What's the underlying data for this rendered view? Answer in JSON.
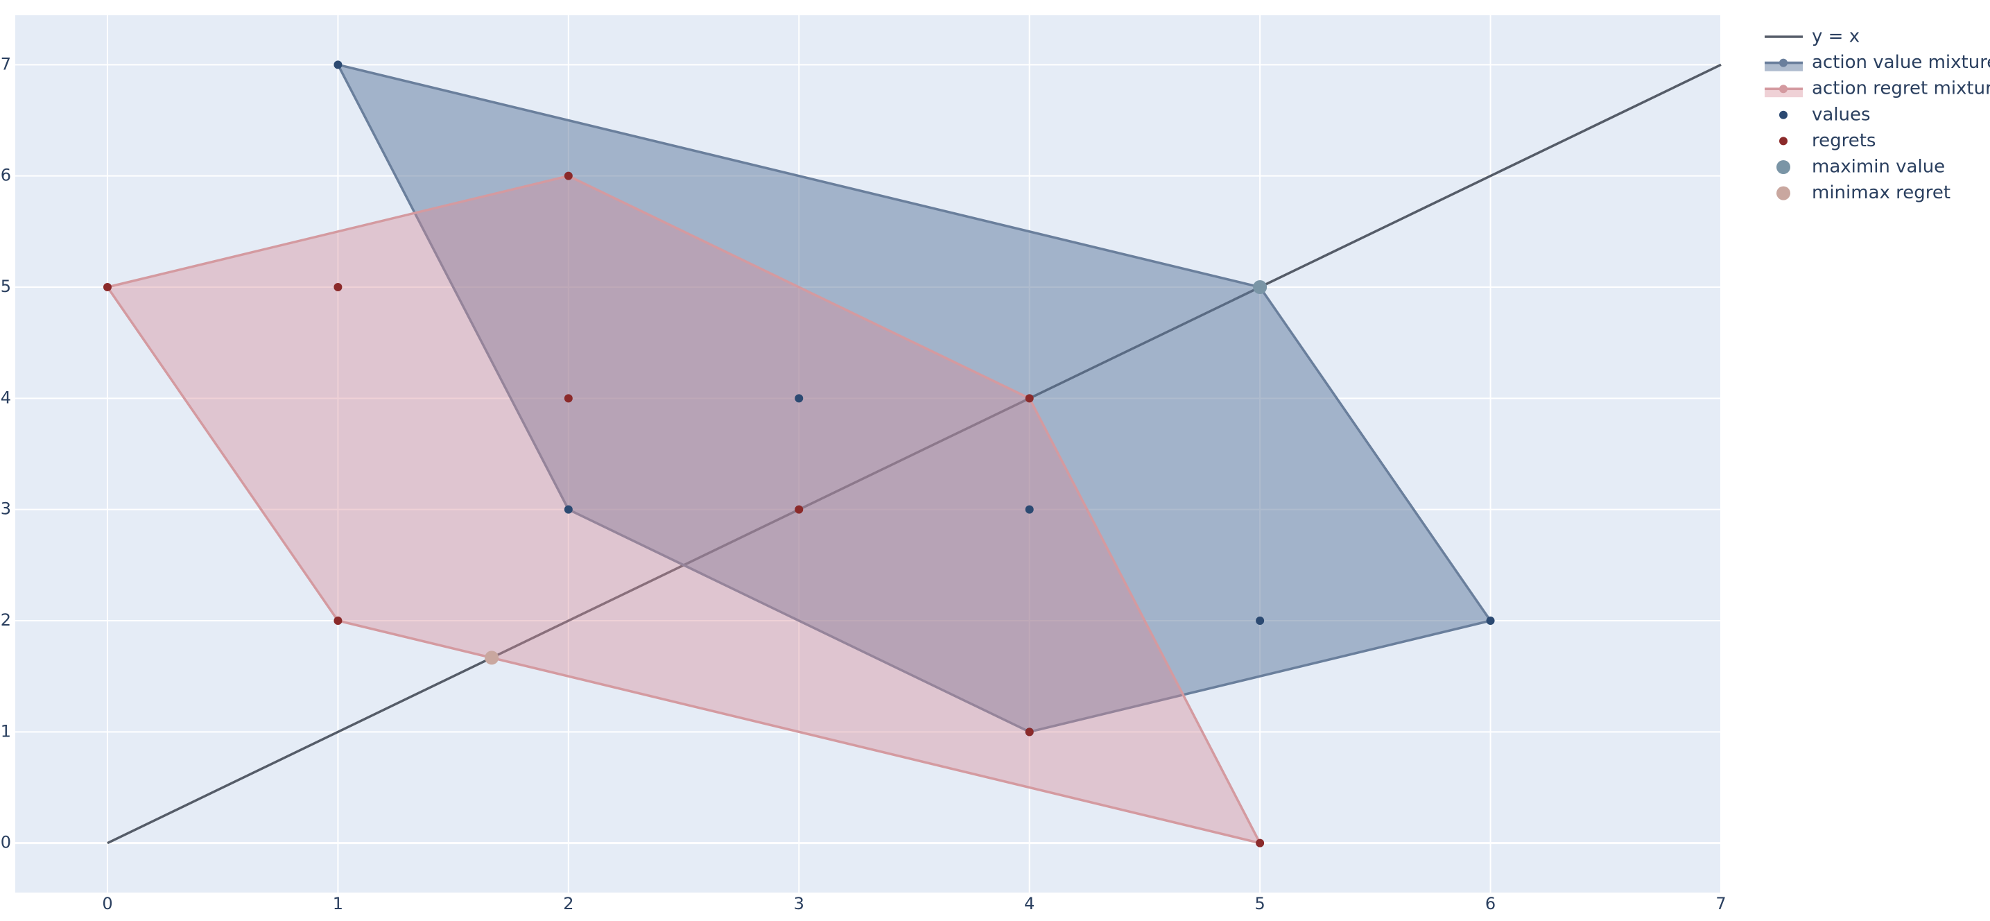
{
  "chart_data": {
    "type": "scatter",
    "xlim": [
      -0.4,
      7
    ],
    "ylim": [
      -0.445,
      7.445
    ],
    "xticks": [
      0,
      1,
      2,
      3,
      4,
      5,
      6,
      7
    ],
    "yticks": [
      0,
      1,
      2,
      3,
      4,
      5,
      6,
      7
    ],
    "grid": true,
    "legend": "right",
    "series": [
      {
        "name": "y = x",
        "mode": "lines",
        "color": "#555c68",
        "x": [
          0,
          7
        ],
        "y": [
          0,
          7
        ]
      },
      {
        "name": "action value mixture",
        "mode": "lines+markers",
        "fill": "rgba(96,122,158,0.5)",
        "color": "#6a7f9c",
        "x": [
          1,
          5,
          6,
          4,
          2
        ],
        "y": [
          7,
          5,
          2,
          1,
          3
        ]
      },
      {
        "name": "action regret mixture",
        "mode": "lines+markers",
        "fill": "rgba(214,140,152,0.4)",
        "color": "#d49aa0",
        "x": [
          0,
          2,
          4,
          5,
          1
        ],
        "y": [
          5,
          6,
          4,
          0,
          2
        ]
      },
      {
        "name": "values",
        "mode": "markers",
        "color": "#2c4a72",
        "x": [
          1,
          2,
          3,
          4,
          5,
          6,
          5,
          4
        ],
        "y": [
          7,
          3,
          4,
          3,
          2,
          2,
          5,
          1
        ]
      },
      {
        "name": "regrets",
        "mode": "markers",
        "color": "#8b2a2a",
        "x": [
          0,
          1,
          2,
          2,
          3,
          4,
          1,
          4,
          5
        ],
        "y": [
          5,
          5,
          6,
          4,
          3,
          4,
          2,
          1,
          0
        ]
      },
      {
        "name": "maximin value",
        "mode": "markers",
        "size": "large",
        "color": "#7a95a6",
        "x": [
          5
        ],
        "y": [
          5
        ]
      },
      {
        "name": "minimax regret",
        "mode": "markers",
        "size": "large",
        "color": "#c9a79f",
        "x": [
          1.667
        ],
        "y": [
          1.667
        ]
      }
    ]
  }
}
